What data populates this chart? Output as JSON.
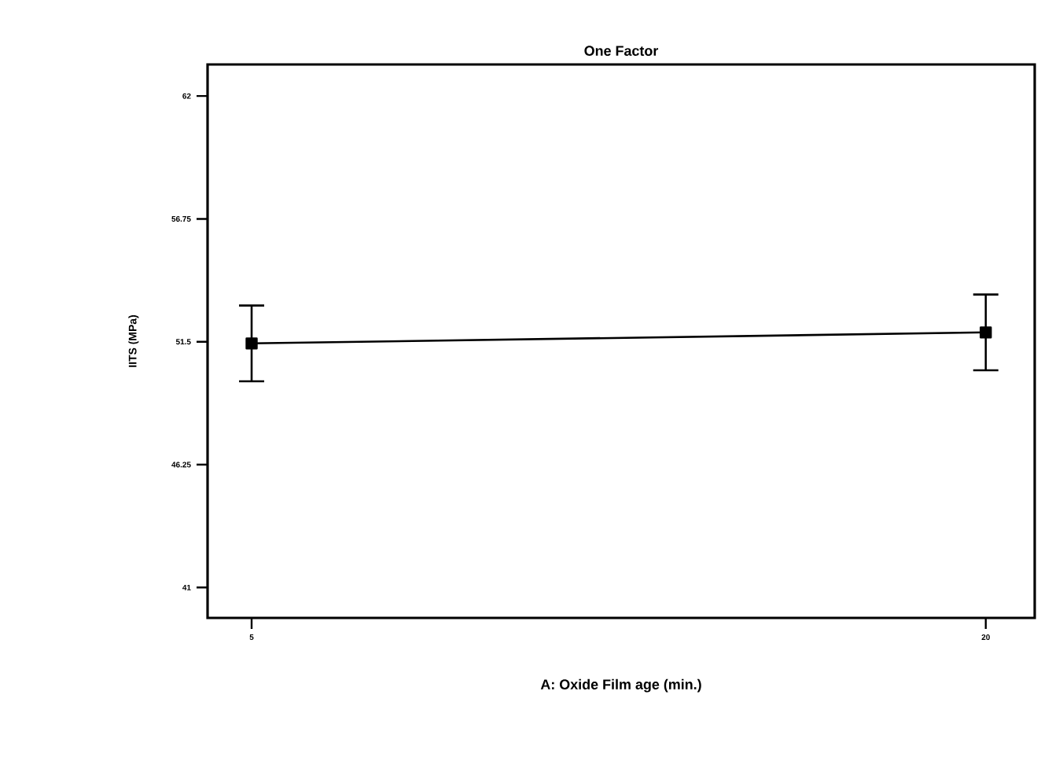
{
  "chart_data": {
    "type": "line",
    "title": "One Factor",
    "xlabel": "A: Oxide Film age (min.)",
    "ylabel": "IITS (MPa)",
    "x": [
      5,
      20
    ],
    "series": [
      {
        "color": "#000000",
        "values": [
          51.43,
          51.9
        ],
        "errors": [
          1.62,
          1.62
        ]
      }
    ],
    "xlim": [
      4.1,
      21
    ],
    "xticks": [
      5,
      20
    ],
    "ylim": [
      39.7,
      63.35
    ],
    "yticks": [
      41,
      46.25,
      51.5,
      56.75,
      62
    ],
    "marker": "square",
    "line_style": "solid"
  }
}
